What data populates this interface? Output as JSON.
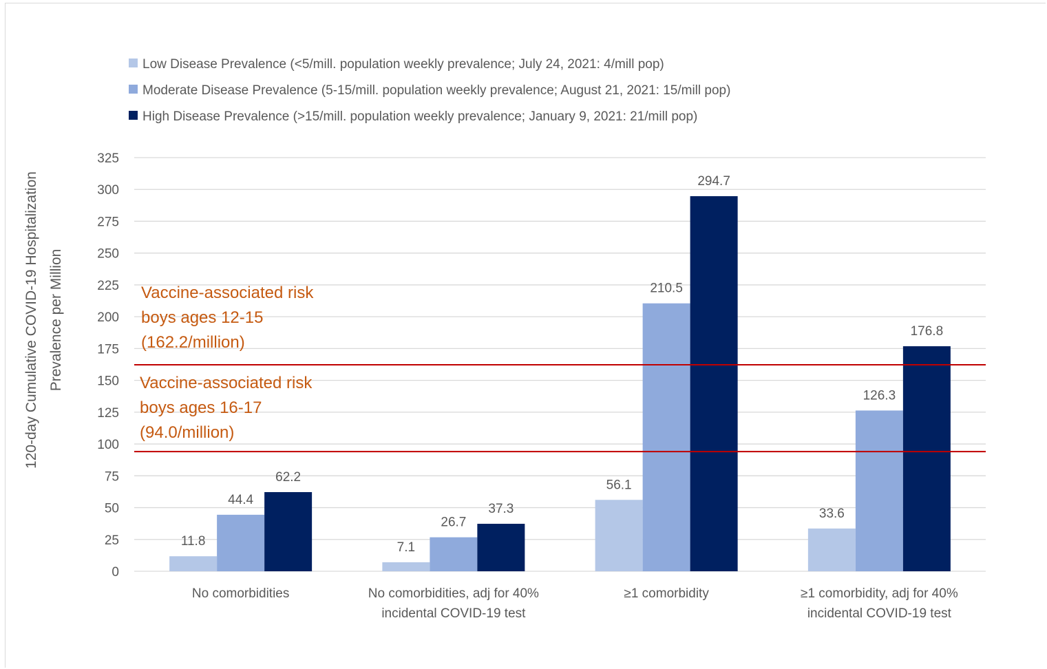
{
  "chart_data": {
    "type": "bar",
    "ylabel_lines": [
      "120-day Cumulative COVID-19 Hospitalization",
      "Prevalence per Million"
    ],
    "ylim": [
      0,
      325
    ],
    "yticks": [
      0,
      25,
      50,
      75,
      100,
      125,
      150,
      175,
      200,
      225,
      250,
      275,
      300,
      325
    ],
    "grid": true,
    "legend_position": "top-left",
    "categories": [
      [
        "No comorbidities"
      ],
      [
        "No comorbidities, adj for 40%",
        "incidental COVID-19 test"
      ],
      [
        "≥1 comorbidity"
      ],
      [
        "≥1 comorbidity, adj for 40%",
        "incidental COVID-19 test"
      ]
    ],
    "series": [
      {
        "name": "Low Disease Prevalence (<5/mill. population weekly prevalence; July 24, 2021: 4/mill pop)",
        "values": [
          11.8,
          7.1,
          56.1,
          33.6
        ],
        "labels": [
          "11.8",
          "7.1",
          "56.1",
          "33.6"
        ],
        "color": "#b4c7e7"
      },
      {
        "name": "Moderate Disease Prevalence (5-15/mill. population weekly prevalence; August 21, 2021: 15/mill pop)",
        "values": [
          44.4,
          26.7,
          210.5,
          126.3
        ],
        "labels": [
          "44.4",
          "26.7",
          "210.5",
          "126.3"
        ],
        "color": "#8faadc"
      },
      {
        "name": "High Disease Prevalence (>15/mill. population weekly prevalence; January 9, 2021: 21/mill pop)",
        "values": [
          62.2,
          37.3,
          294.7,
          176.8
        ],
        "labels": [
          "62.2",
          "37.3",
          "294.7",
          "176.8"
        ],
        "color": "#002060"
      }
    ],
    "reference_lines": [
      {
        "value": 162.2,
        "label_lines": [
          "Vaccine-associated risk",
          "boys ages 12-15",
          "(162.2/million)"
        ],
        "color": "#c00000"
      },
      {
        "value": 94.0,
        "label_lines": [
          "Vaccine-associated risk",
          "boys ages 16-17",
          "(94.0/million)"
        ],
        "color": "#c00000"
      }
    ],
    "colors": {
      "grid": "#d9d9d9",
      "text": "#595959",
      "annotation": "#c55a11"
    }
  }
}
